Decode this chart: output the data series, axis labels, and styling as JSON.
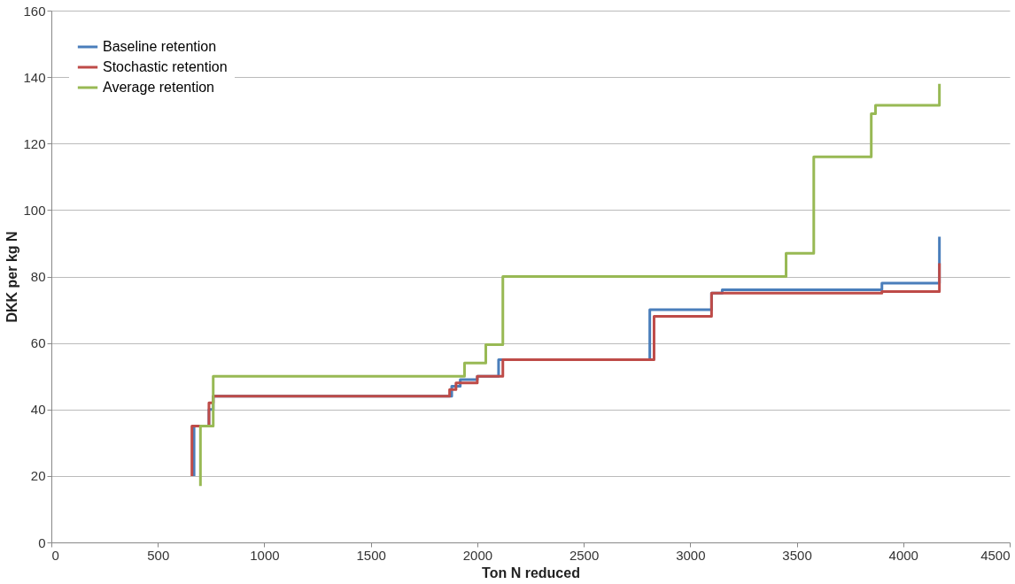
{
  "chart_data": {
    "type": "step",
    "xlabel": "Ton N reduced",
    "ylabel": "DKK per kg N",
    "xlim": [
      0,
      4500
    ],
    "xticks": [
      0,
      500,
      1000,
      1500,
      2000,
      2500,
      3000,
      3500,
      4000,
      4500
    ],
    "ylim": [
      0,
      160
    ],
    "yticks": [
      0,
      20,
      40,
      60,
      80,
      100,
      120,
      140,
      160
    ],
    "grid": "y",
    "legend": "top left",
    "line_style": "solid",
    "marker": "none",
    "series": [
      {
        "name": "Baseline retention",
        "color": "#4a7ebb",
        "x": [
          670,
          670,
          700,
          740,
          760,
          1880,
          1920,
          2000,
          2100,
          2810,
          3100,
          3150,
          3900,
          4170,
          4170
        ],
        "values": [
          20,
          35,
          35,
          40,
          44,
          47,
          49,
          50,
          55,
          70,
          75,
          76,
          78,
          78,
          92
        ]
      },
      {
        "name": "Stochastic retention",
        "color": "#be4b48",
        "x": [
          660,
          660,
          720,
          740,
          760,
          1870,
          1900,
          2000,
          2120,
          2830,
          3100,
          3900,
          4170,
          4170
        ],
        "values": [
          20,
          35,
          35,
          42,
          44,
          46,
          48,
          50,
          55,
          68,
          75,
          75.5,
          76,
          84
        ]
      },
      {
        "name": "Average retention",
        "color": "#98b954",
        "x": [
          700,
          700,
          760,
          1940,
          2040,
          2120,
          3450,
          3580,
          3850,
          3870,
          4170,
          4170
        ],
        "values": [
          17,
          35,
          50,
          54,
          59.5,
          80,
          87,
          116,
          129,
          131.5,
          131.5,
          138
        ]
      }
    ]
  }
}
